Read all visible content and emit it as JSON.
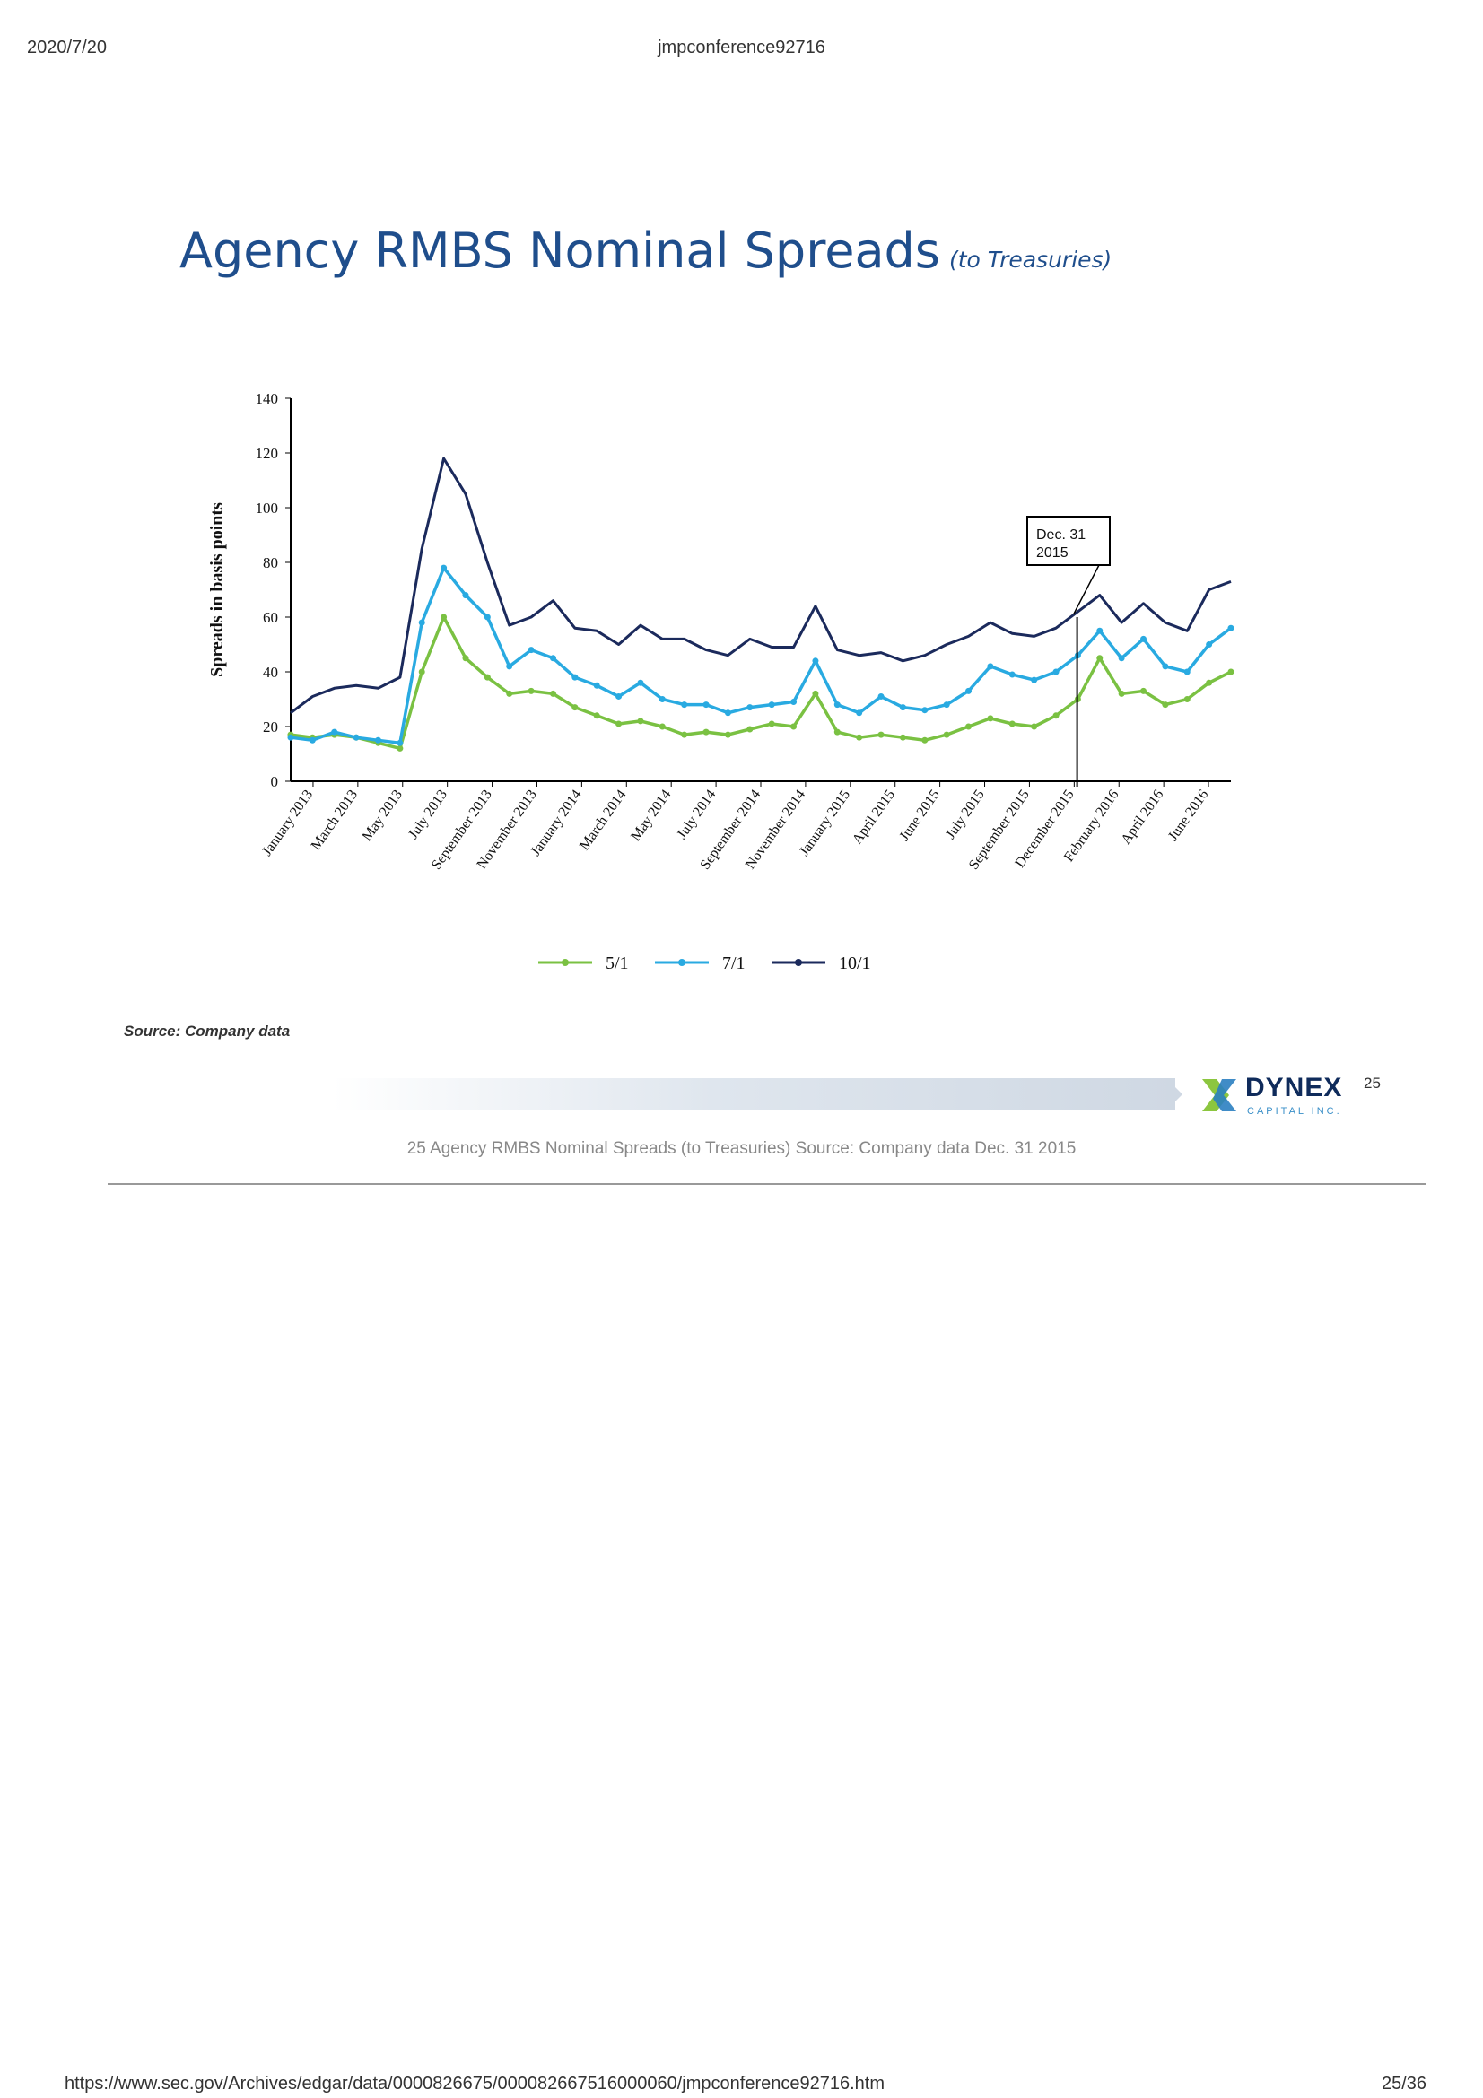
{
  "browser_header": {
    "date": "2020/7/20",
    "doc_title": "jmpconference92716"
  },
  "browser_footer": {
    "url": "https://www.sec.gov/Archives/edgar/data/0000826675/000082667516000060/jmpconference92716.htm",
    "page": "25/36"
  },
  "slide": {
    "title": "Agency RMBS Nominal Spreads",
    "subtitle": "(to Treasuries)",
    "source": "Source: Company data",
    "slide_number": "25",
    "alt_text": "25  Agency RMBS Nominal Spreads (to Treasuries)  Source: Company data  Dec. 31  2015"
  },
  "logo": {
    "name": "DYNEX",
    "sub": "CAPITAL INC."
  },
  "colors": {
    "s51": "#7ac142",
    "s71": "#29aae1",
    "s101": "#1b2a5c",
    "title": "#1f4e8c"
  },
  "chart_data": {
    "type": "line",
    "ylabel": "Spreads in basis points",
    "xlabel": "",
    "ylim": [
      0,
      140
    ],
    "yticks": [
      0,
      20,
      40,
      60,
      80,
      100,
      120,
      140
    ],
    "x_range": [
      "2013-01",
      "2016-08"
    ],
    "categories": [
      "January 2013",
      "March 2013",
      "May 2013",
      "July 2013",
      "September 2013",
      "November 2013",
      "January 2014",
      "March 2014",
      "May 2014",
      "July 2014",
      "September 2014",
      "November 2014",
      "January 2015",
      "April 2015",
      "June 2015",
      "July 2015",
      "September 2015",
      "December 2015",
      "February 2016",
      "April 2016",
      "June 2016"
    ],
    "x": [
      "2013-01",
      "2013-02",
      "2013-03",
      "2013-04",
      "2013-05",
      "2013-06",
      "2013-07",
      "2013-08",
      "2013-09",
      "2013-10",
      "2013-11",
      "2013-12",
      "2014-01",
      "2014-02",
      "2014-03",
      "2014-04",
      "2014-05",
      "2014-06",
      "2014-07",
      "2014-08",
      "2014-09",
      "2014-10",
      "2014-11",
      "2014-12",
      "2015-01",
      "2015-02",
      "2015-03",
      "2015-04",
      "2015-05",
      "2015-06",
      "2015-07",
      "2015-08",
      "2015-09",
      "2015-10",
      "2015-11",
      "2015-12",
      "2016-01",
      "2016-02",
      "2016-03",
      "2016-04",
      "2016-05",
      "2016-06",
      "2016-07",
      "2016-08"
    ],
    "series": [
      {
        "name": "5/1",
        "values": [
          17,
          16,
          17,
          16,
          14,
          12,
          40,
          60,
          45,
          38,
          32,
          33,
          32,
          27,
          24,
          21,
          22,
          20,
          17,
          18,
          17,
          19,
          21,
          20,
          32,
          18,
          16,
          17,
          16,
          15,
          17,
          20,
          23,
          21,
          20,
          24,
          30,
          45,
          32,
          33,
          28,
          30,
          36,
          40
        ]
      },
      {
        "name": "7/1",
        "values": [
          16,
          15,
          18,
          16,
          15,
          14,
          58,
          78,
          68,
          60,
          42,
          48,
          45,
          38,
          35,
          31,
          36,
          30,
          28,
          28,
          25,
          27,
          28,
          29,
          44,
          28,
          25,
          31,
          27,
          26,
          28,
          33,
          42,
          39,
          37,
          40,
          46,
          55,
          45,
          52,
          42,
          40,
          50,
          56
        ]
      },
      {
        "name": "10/1",
        "values": [
          25,
          31,
          34,
          35,
          34,
          38,
          85,
          118,
          105,
          80,
          57,
          60,
          66,
          56,
          55,
          50,
          57,
          52,
          52,
          48,
          46,
          52,
          49,
          49,
          64,
          48,
          46,
          47,
          44,
          46,
          50,
          53,
          58,
          54,
          53,
          56,
          62,
          68,
          58,
          65,
          58,
          55,
          70,
          73
        ]
      }
    ],
    "legend": [
      "5/1",
      "7/1",
      "10/1"
    ],
    "legend_position": "bottom",
    "grid": false,
    "annotations": [
      {
        "lines": [
          "Dec. 31",
          "2015"
        ],
        "x": "2015-12-31"
      }
    ]
  }
}
